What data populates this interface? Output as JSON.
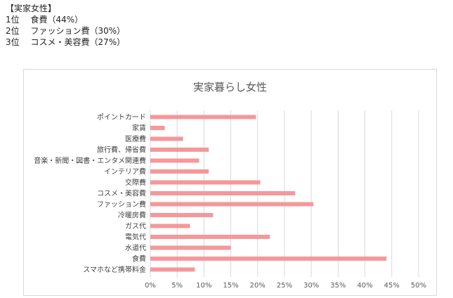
{
  "summary": {
    "heading": "【実家女性】",
    "lines": [
      "1位　 食費（44%）",
      "2位　 ファッション費（30%）",
      "3位　 コスメ・美容費（27%）"
    ]
  },
  "chart_data": {
    "type": "bar",
    "orientation": "horizontal",
    "title": "実家暮らし女性",
    "categories": [
      "ポイントカード",
      "家賃",
      "医療費",
      "旅行費、帰省費",
      "音楽・新聞・図書・エンタメ関連費",
      "インテリア費",
      "交際費",
      "コスメ・美容費",
      "ファッション費",
      "冷暖房費",
      "ガス代",
      "電気代",
      "水道代",
      "食費",
      "スマホなど携帯料金"
    ],
    "values": [
      19.7,
      2.7,
      6.1,
      10.9,
      9.1,
      10.9,
      20.5,
      27.0,
      30.4,
      11.7,
      7.4,
      22.3,
      15.0,
      44.0,
      8.3
    ],
    "xlim": [
      0,
      50
    ],
    "xticks": [
      "0%",
      "5%",
      "10%",
      "15%",
      "20%",
      "25%",
      "30%",
      "35%",
      "40%",
      "45%",
      "50%"
    ],
    "grid": true,
    "bar_color": "#f4989a",
    "grid_color": "#d9d9d9"
  }
}
